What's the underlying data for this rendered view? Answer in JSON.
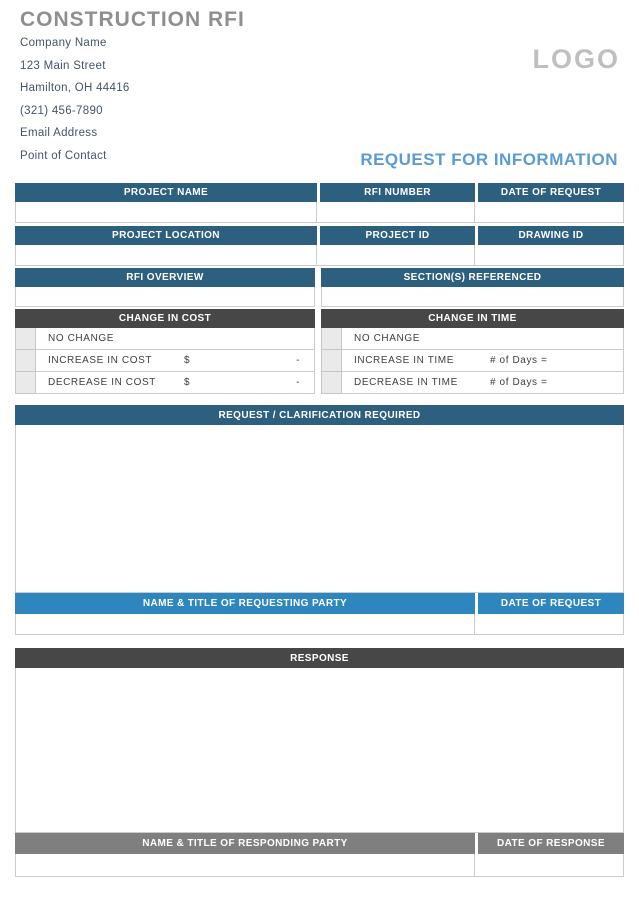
{
  "header": {
    "title": "CONSTRUCTION RFI",
    "logo": "LOGO",
    "subtitle": "REQUEST FOR INFORMATION"
  },
  "company": {
    "name": "Company Name",
    "street": "123 Main Street",
    "city_state_zip": "Hamilton, OH 44416",
    "phone": "(321) 456-7890",
    "email": "Email Address",
    "contact": "Point of Contact"
  },
  "colors": {
    "header_teal": "#2D5F7E",
    "header_blue": "#2E86BE",
    "header_dark_gray": "#474747",
    "header_mid_gray": "#7F7F7F",
    "accent_blue": "#5B9BD5"
  },
  "project": {
    "headers": [
      "PROJECT NAME",
      "RFI NUMBER",
      "DATE OF REQUEST"
    ]
  },
  "location": {
    "headers": [
      "PROJECT LOCATION",
      "PROJECT ID",
      "DRAWING ID"
    ]
  },
  "overview": {
    "headers": [
      "RFI OVERVIEW",
      "SECTION(S) REFERENCED"
    ]
  },
  "changes": {
    "cost": {
      "header": "CHANGE IN COST",
      "rows": [
        {
          "label": "NO CHANGE",
          "amount_prefix": "",
          "amount_value": ""
        },
        {
          "label": "INCREASE IN COST",
          "amount_prefix": "$",
          "amount_value": "-"
        },
        {
          "label": "DECREASE IN COST",
          "amount_prefix": "$",
          "amount_value": "-"
        }
      ]
    },
    "time": {
      "header": "CHANGE IN TIME",
      "rows": [
        {
          "label": "NO CHANGE",
          "days_label": ""
        },
        {
          "label": "INCREASE IN TIME",
          "days_label": "# of Days ="
        },
        {
          "label": "DECREASE IN TIME",
          "days_label": "# of Days ="
        }
      ]
    }
  },
  "request": {
    "header": "REQUEST / CLARIFICATION REQUIRED",
    "footer_headers": [
      "NAME & TITLE OF REQUESTING PARTY",
      "DATE OF REQUEST"
    ]
  },
  "response": {
    "header": "RESPONSE",
    "footer_headers": [
      "NAME & TITLE OF RESPONDING PARTY",
      "DATE OF RESPONSE"
    ]
  }
}
